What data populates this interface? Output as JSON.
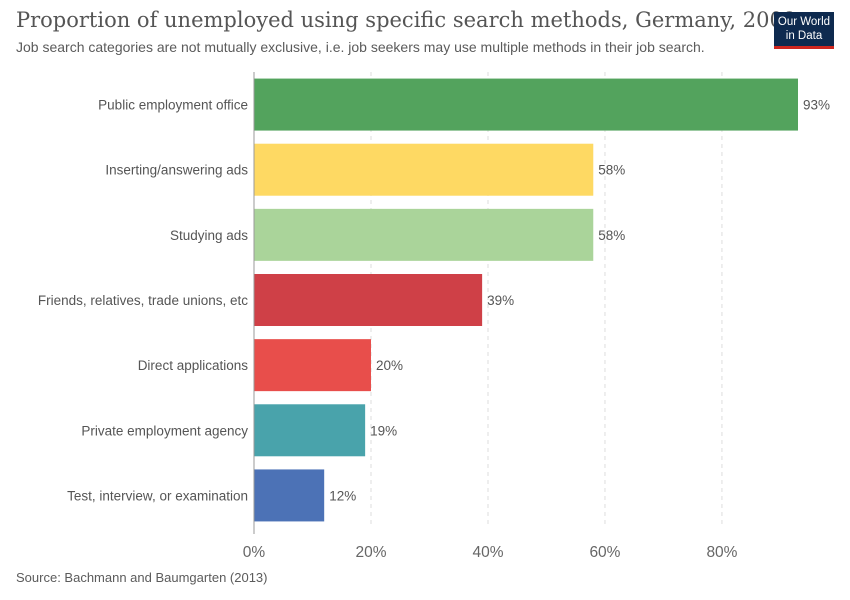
{
  "header": {
    "title": "Proportion of unemployed using specific search methods, Germany, 2008",
    "subtitle": "Job search categories are not mutually exclusive, i.e. job seekers may use multiple methods in their job search.",
    "logo_line1": "Our World",
    "logo_line2": "in Data"
  },
  "footer": {
    "source": "Source: Bachmann and Baumgarten (2013)"
  },
  "colors": {
    "logo_bg": "#0e2a4f",
    "logo_accent": "#ce261e",
    "grid": "#dddddd",
    "axis": "#999999"
  },
  "chart_data": {
    "type": "bar",
    "orientation": "horizontal",
    "title": "Proportion of unemployed using specific search methods, Germany, 2008",
    "subtitle": "Job search categories are not mutually exclusive, i.e. job seekers may use multiple methods in their job search.",
    "categories": [
      "Public employment office",
      "Inserting/answering ads",
      "Studying ads",
      "Friends, relatives, trade unions, etc",
      "Direct applications",
      "Private employment agency",
      "Test, interview, or examination"
    ],
    "values": [
      93,
      58,
      58,
      39,
      20,
      19,
      12
    ],
    "value_labels": [
      "93%",
      "58%",
      "58%",
      "39%",
      "20%",
      "19%",
      "12%"
    ],
    "bar_colors": [
      "#53a35d",
      "#fed963",
      "#aad49a",
      "#cf4047",
      "#e84e4b",
      "#49a3ab",
      "#4c72b6"
    ],
    "xlim": [
      0,
      93
    ],
    "xticks": [
      0,
      20,
      40,
      60,
      80
    ],
    "xtick_labels": [
      "0%",
      "20%",
      "40%",
      "60%",
      "80%"
    ],
    "grid": true,
    "grid_style": "dashed vertical"
  }
}
